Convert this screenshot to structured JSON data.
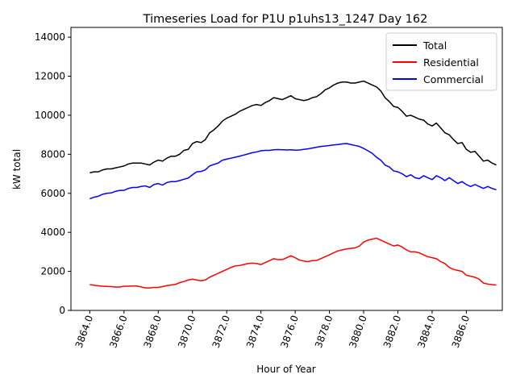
{
  "chart_data": {
    "type": "line",
    "title": "Timeseries Load for P1U p1uhs13_1247  Day 162",
    "xlabel": "Hour of Year",
    "ylabel": "kW total",
    "xlim": [
      3862.9,
      3888.1
    ],
    "ylim": [
      0,
      14500
    ],
    "xticks": [
      3864,
      3866,
      3868,
      3870,
      3872,
      3874,
      3876,
      3878,
      3880,
      3882,
      3884,
      3886
    ],
    "xtick_labels": [
      "3864.0",
      "3866.0",
      "3868.0",
      "3870.0",
      "3872.0",
      "3874.0",
      "3876.0",
      "3878.0",
      "3880.0",
      "3882.0",
      "3884.0",
      "3886.0"
    ],
    "yticks": [
      0,
      2000,
      4000,
      6000,
      8000,
      10000,
      12000,
      14000
    ],
    "ytick_labels": [
      "0",
      "2000",
      "4000",
      "6000",
      "8000",
      "10000",
      "12000",
      "14000"
    ],
    "legend_position": "top-right",
    "x_start": 3864.0,
    "x_step": 0.25,
    "series": [
      {
        "name": "Total",
        "color": "#000000",
        "values": [
          7050,
          7100,
          7100,
          7200,
          7250,
          7250,
          7300,
          7350,
          7400,
          7500,
          7550,
          7550,
          7550,
          7500,
          7450,
          7600,
          7700,
          7650,
          7800,
          7900,
          7900,
          8000,
          8200,
          8250,
          8550,
          8650,
          8600,
          8750,
          9100,
          9250,
          9450,
          9700,
          9850,
          9950,
          10050,
          10200,
          10300,
          10400,
          10500,
          10550,
          10500,
          10650,
          10750,
          10900,
          10850,
          10800,
          10900,
          11000,
          10850,
          10800,
          10750,
          10800,
          10900,
          10950,
          11100,
          11300,
          11400,
          11550,
          11650,
          11700,
          11700,
          11650,
          11650,
          11700,
          11750,
          11650,
          11550,
          11450,
          11250,
          10900,
          10700,
          10450,
          10400,
          10200,
          9950,
          10000,
          9900,
          9800,
          9750,
          9550,
          9450,
          9600,
          9350,
          9100,
          9000,
          8750,
          8550,
          8600,
          8250,
          8100,
          8150,
          7900,
          7650,
          7700,
          7550,
          7450
        ]
      },
      {
        "name": "Residential",
        "color": "#ff0000",
        "values": [
          1320,
          1290,
          1260,
          1240,
          1230,
          1220,
          1200,
          1200,
          1240,
          1240,
          1250,
          1250,
          1200,
          1150,
          1150,
          1180,
          1180,
          1220,
          1270,
          1300,
          1330,
          1420,
          1480,
          1560,
          1600,
          1560,
          1520,
          1560,
          1700,
          1800,
          1900,
          2000,
          2100,
          2200,
          2280,
          2300,
          2350,
          2400,
          2420,
          2400,
          2350,
          2450,
          2550,
          2650,
          2600,
          2600,
          2700,
          2800,
          2700,
          2580,
          2530,
          2500,
          2550,
          2560,
          2650,
          2750,
          2850,
          2950,
          3050,
          3100,
          3150,
          3180,
          3200,
          3300,
          3500,
          3600,
          3650,
          3700,
          3600,
          3500,
          3400,
          3300,
          3350,
          3250,
          3100,
          3000,
          3000,
          2950,
          2850,
          2750,
          2700,
          2650,
          2500,
          2400,
          2200,
          2100,
          2050,
          2000,
          1800,
          1750,
          1700,
          1600,
          1400,
          1350,
          1320,
          1300
        ]
      },
      {
        "name": "Commercial",
        "color": "#0000ff",
        "values": [
          5720,
          5800,
          5850,
          5950,
          6000,
          6020,
          6100,
          6150,
          6150,
          6250,
          6300,
          6300,
          6350,
          6380,
          6300,
          6450,
          6500,
          6420,
          6550,
          6600,
          6600,
          6650,
          6720,
          6780,
          6950,
          7100,
          7120,
          7200,
          7400,
          7480,
          7550,
          7700,
          7750,
          7800,
          7850,
          7900,
          7960,
          8020,
          8080,
          8120,
          8180,
          8200,
          8200,
          8230,
          8240,
          8230,
          8220,
          8230,
          8210,
          8220,
          8250,
          8280,
          8320,
          8360,
          8400,
          8420,
          8450,
          8480,
          8500,
          8530,
          8550,
          8500,
          8450,
          8400,
          8300,
          8180,
          8050,
          7850,
          7700,
          7450,
          7350,
          7150,
          7100,
          7000,
          6850,
          6950,
          6800,
          6750,
          6900,
          6800,
          6700,
          6900,
          6800,
          6650,
          6800,
          6650,
          6500,
          6600,
          6450,
          6350,
          6450,
          6350,
          6250,
          6350,
          6250,
          6180
        ]
      }
    ]
  }
}
